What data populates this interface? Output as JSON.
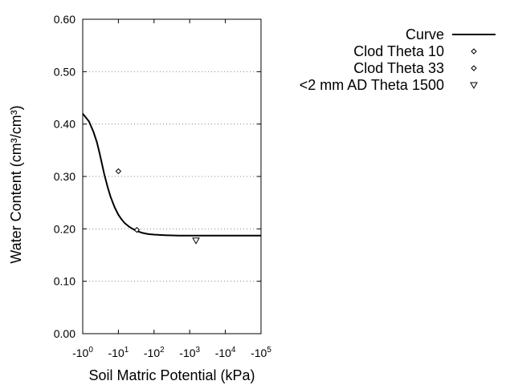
{
  "chart_data": {
    "type": "scatter",
    "title": "",
    "xlabel": "Soil Matric Potential (kPa)",
    "ylabel": "Water Content (cm³/cm³)",
    "x_scale": "log-negative",
    "xlim": [
      -1,
      -100000
    ],
    "ylim": [
      0,
      0.6
    ],
    "grid": "horizontal-dotted",
    "legend_position": "top-right",
    "y_ticks": [
      "0.00",
      "0.10",
      "0.20",
      "0.30",
      "0.40",
      "0.50",
      "0.60"
    ],
    "x_ticks": [
      {
        "base": "-10",
        "exp": "0",
        "value": -1
      },
      {
        "base": "-10",
        "exp": "1",
        "value": -10
      },
      {
        "base": "-10",
        "exp": "2",
        "value": -100
      },
      {
        "base": "-10",
        "exp": "3",
        "value": -1000
      },
      {
        "base": "-10",
        "exp": "4",
        "value": -10000
      },
      {
        "base": "-10",
        "exp": "5",
        "value": -100000
      }
    ],
    "series": [
      {
        "name": "Curve",
        "kind": "line",
        "color": "#000000",
        "x": [
          -1,
          -1.5,
          -2,
          -2.5,
          -3,
          -4,
          -5,
          -6,
          -7,
          -8,
          -10,
          -12,
          -15,
          -20,
          -25,
          -30,
          -40,
          -50,
          -70,
          -100,
          -200,
          -500,
          -1000,
          -10000,
          -100000
        ],
        "y": [
          0.42,
          0.405,
          0.385,
          0.365,
          0.343,
          0.305,
          0.28,
          0.262,
          0.25,
          0.24,
          0.227,
          0.219,
          0.211,
          0.204,
          0.2,
          0.197,
          0.194,
          0.192,
          0.19,
          0.189,
          0.188,
          0.187,
          0.187,
          0.187,
          0.187
        ]
      },
      {
        "name": "Clod Theta 10",
        "kind": "marker",
        "marker": "diamond",
        "x": [
          -10
        ],
        "y": [
          0.31
        ]
      },
      {
        "name": "Clod Theta 33",
        "kind": "marker",
        "marker": "diamond",
        "x": [
          -33
        ],
        "y": [
          0.198
        ]
      },
      {
        "name": "<2 mm AD Theta 1500",
        "kind": "marker",
        "marker": "triangle-down",
        "x": [
          -1500
        ],
        "y": [
          0.178
        ]
      }
    ]
  }
}
